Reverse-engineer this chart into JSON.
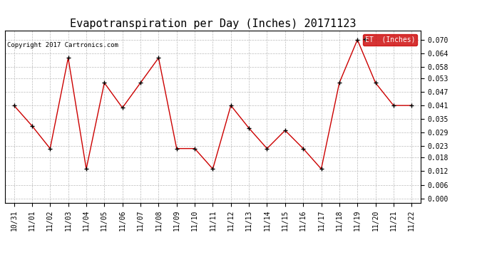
{
  "title": "Evapotranspiration per Day (Inches) 20171123",
  "copyright_text": "Copyright 2017 Cartronics.com",
  "legend_label": "ET  (Inches)",
  "x_labels": [
    "10/31",
    "11/01",
    "11/02",
    "11/03",
    "11/04",
    "11/05",
    "11/06",
    "11/07",
    "11/08",
    "11/09",
    "11/10",
    "11/11",
    "11/12",
    "11/13",
    "11/14",
    "11/15",
    "11/16",
    "11/17",
    "11/18",
    "11/19",
    "11/20",
    "11/21",
    "11/22"
  ],
  "y_values": [
    0.041,
    0.032,
    0.022,
    0.062,
    0.013,
    0.051,
    0.04,
    0.051,
    0.062,
    0.022,
    0.022,
    0.013,
    0.041,
    0.031,
    0.022,
    0.03,
    0.022,
    0.013,
    0.051,
    0.07,
    0.051,
    0.041,
    0.041
  ],
  "y_ticks": [
    0.0,
    0.006,
    0.012,
    0.018,
    0.023,
    0.029,
    0.035,
    0.041,
    0.047,
    0.053,
    0.058,
    0.064,
    0.07
  ],
  "line_color": "#CC0000",
  "marker": "+",
  "marker_color": "#000000",
  "bg_color": "#ffffff",
  "grid_color": "#bbbbbb",
  "title_fontsize": 11,
  "tick_fontsize": 7,
  "copyright_fontsize": 6.5,
  "legend_bg": "#CC0000",
  "legend_text_color": "#ffffff",
  "legend_fontsize": 7
}
